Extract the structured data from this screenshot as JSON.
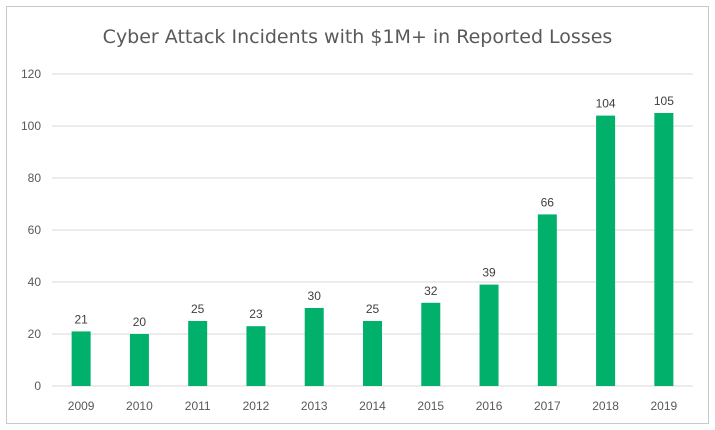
{
  "chart_data": {
    "type": "bar",
    "title": "Cyber Attack Incidents with $1M+ in Reported Losses",
    "categories": [
      "2009",
      "2010",
      "2011",
      "2012",
      "2013",
      "2014",
      "2015",
      "2016",
      "2017",
      "2018",
      "2019"
    ],
    "values": [
      21,
      20,
      25,
      23,
      30,
      25,
      32,
      39,
      66,
      104,
      105
    ],
    "ylim": [
      0,
      120
    ],
    "yticks": [
      0,
      20,
      40,
      60,
      80,
      100,
      120
    ],
    "grid": true,
    "bar_color": "#00B06B",
    "xlabel": "",
    "ylabel": ""
  }
}
